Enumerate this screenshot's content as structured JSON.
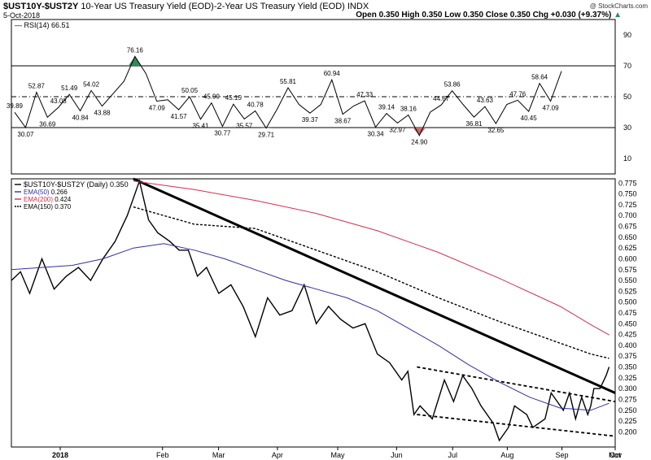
{
  "header": {
    "symbol": "$UST10Y-$UST2Y",
    "description": "10-Year US Treasury Yield (EOD)-2-Year US Treasury Yield (EOD)",
    "exchange": "INDX",
    "date": "5-Oct-2018",
    "quote": "Open 0.350  High 0.350  Low 0.350  Close 0.350  Chg +0.030 (+9.37%)",
    "quote_arrow": "▲",
    "watermark": "@ StockCharts.com"
  },
  "colors": {
    "price": "#000000",
    "ema50": "#3030a0",
    "ema200": "#d0304a",
    "ema150": "#000000",
    "overbought": "#2e8b57",
    "oversold": "#c07070"
  },
  "chart_data": [
    {
      "type": "line",
      "title": "RSI(14) 66.51",
      "legend": "RSI(14)",
      "last_value": "66.51",
      "ylim": [
        0,
        100
      ],
      "y_ticks": [
        "10",
        "30",
        "50",
        "70",
        "90"
      ],
      "reference_lines": [
        30,
        50,
        70
      ],
      "series": [
        {
          "name": "RSI(14)",
          "values": [
            39.89,
            30.07,
            52.87,
            36.69,
            43.08,
            51.49,
            40.84,
            54.02,
            43.88,
            52,
            60,
            76.16,
            65,
            47.09,
            48,
            41.57,
            50.05,
            35.41,
            45.99,
            30.77,
            45.15,
            35.57,
            40.78,
            29.71,
            42,
            55.81,
            45,
            39.37,
            45,
            60.94,
            38.67,
            44,
            47.33,
            30.34,
            39.14,
            32.97,
            38.16,
            24.9,
            40,
            44.67,
            53.86,
            45,
            36.81,
            43.63,
            32.65,
            45,
            47.76,
            40.45,
            58.64,
            47.09,
            66.51
          ]
        }
      ],
      "data_labels": [
        "39.89",
        "30.07",
        "52.87",
        "36.69",
        "43.08",
        "51.49",
        "40.84",
        "54.02",
        "43.88",
        "76.16",
        "47.09",
        "41.57",
        "50.05",
        "35.41",
        "45.99",
        "30.77",
        "45.15",
        "35.57",
        "40.78",
        "29.71",
        "55.81",
        "39.37",
        "60.94",
        "38.67",
        "47.33",
        "30.34",
        "39.14",
        "32.97",
        "38.16",
        "24.90",
        "44.67",
        "53.86",
        "36.81",
        "43.63",
        "32.65",
        "47.76",
        "40.45",
        "58.64",
        "47.09"
      ]
    },
    {
      "type": "line",
      "title": "$UST10Y-$UST2Y (Daily) 0.350",
      "ylim": [
        0.165,
        0.785
      ],
      "y_ticks": [
        "0.775",
        "0.750",
        "0.725",
        "0.700",
        "0.675",
        "0.650",
        "0.625",
        "0.600",
        "0.575",
        "0.550",
        "0.525",
        "0.500",
        "0.475",
        "0.450",
        "0.425",
        "0.400",
        "0.375",
        "0.350",
        "0.325",
        "0.300",
        "0.275",
        "0.250",
        "0.225",
        "0.200"
      ],
      "x_ticks": [
        "2018",
        "Feb",
        "Mar",
        "Apr",
        "May",
        "Jun",
        "Jul",
        "Aug",
        "Sep",
        "Oct",
        "Nov"
      ],
      "legend": [
        {
          "name": "$UST10Y-$UST2Y (Daily)",
          "value": "0.350"
        },
        {
          "name": "EMA(50)",
          "value": "0.266"
        },
        {
          "name": "EMA(200)",
          "value": "0.424"
        },
        {
          "name": "EMA(150)",
          "value": "0.370"
        }
      ],
      "x_range": [
        0,
        198
      ],
      "series": [
        {
          "name": "$UST10Y-$UST2Y",
          "x": [
            0,
            3,
            6,
            10,
            14,
            18,
            22,
            26,
            30,
            34,
            38,
            42,
            45,
            48,
            52,
            55,
            58,
            61,
            64,
            68,
            72,
            76,
            80,
            84,
            88,
            92,
            96,
            100,
            104,
            108,
            112,
            116,
            120,
            124,
            128,
            130,
            132,
            134,
            138,
            142,
            145,
            148,
            151,
            154,
            156,
            158,
            160,
            163,
            165,
            167,
            169,
            171,
            173,
            175,
            177,
            179,
            181,
            183,
            185,
            187,
            189,
            190,
            191,
            193,
            195,
            196
          ],
          "values": [
            0.55,
            0.57,
            0.52,
            0.6,
            0.53,
            0.56,
            0.58,
            0.55,
            0.6,
            0.64,
            0.7,
            0.78,
            0.69,
            0.66,
            0.64,
            0.62,
            0.62,
            0.56,
            0.58,
            0.52,
            0.54,
            0.49,
            0.42,
            0.51,
            0.47,
            0.48,
            0.54,
            0.45,
            0.49,
            0.46,
            0.44,
            0.45,
            0.38,
            0.36,
            0.32,
            0.34,
            0.24,
            0.26,
            0.23,
            0.32,
            0.27,
            0.33,
            0.3,
            0.26,
            0.24,
            0.22,
            0.18,
            0.21,
            0.26,
            0.25,
            0.24,
            0.21,
            0.22,
            0.23,
            0.29,
            0.27,
            0.25,
            0.29,
            0.23,
            0.28,
            0.24,
            0.26,
            0.3,
            0.3,
            0.33,
            0.35
          ]
        },
        {
          "name": "EMA(50)",
          "x": [
            0,
            10,
            20,
            30,
            40,
            50,
            60,
            70,
            80,
            90,
            100,
            110,
            120,
            130,
            140,
            150,
            160,
            170,
            180,
            190,
            196
          ],
          "values": [
            0.575,
            0.58,
            0.585,
            0.6,
            0.625,
            0.635,
            0.62,
            0.6,
            0.575,
            0.55,
            0.53,
            0.51,
            0.48,
            0.44,
            0.4,
            0.355,
            0.315,
            0.28,
            0.255,
            0.25,
            0.266
          ]
        },
        {
          "name": "EMA(200)",
          "x": [
            40,
            60,
            80,
            100,
            120,
            140,
            160,
            180,
            190,
            196
          ],
          "values": [
            0.78,
            0.76,
            0.735,
            0.705,
            0.665,
            0.615,
            0.555,
            0.49,
            0.448,
            0.424
          ]
        },
        {
          "name": "EMA(150)",
          "x": [
            40,
            60,
            80,
            100,
            120,
            140,
            160,
            180,
            190,
            196
          ],
          "values": [
            0.72,
            0.68,
            0.67,
            0.62,
            0.57,
            0.51,
            0.455,
            0.405,
            0.38,
            0.37
          ]
        }
      ],
      "trendlines": [
        {
          "name": "trendline-upper",
          "style": "solid",
          "from": [
            40,
            0.785
          ],
          "to": [
            198,
            0.29
          ]
        },
        {
          "name": "trendline-channel-top",
          "style": "dashed",
          "from": [
            133,
            0.35
          ],
          "to": [
            198,
            0.27
          ]
        },
        {
          "name": "trendline-channel-bottom",
          "style": "dashed",
          "from": [
            133,
            0.24
          ],
          "to": [
            198,
            0.19
          ]
        }
      ]
    }
  ]
}
